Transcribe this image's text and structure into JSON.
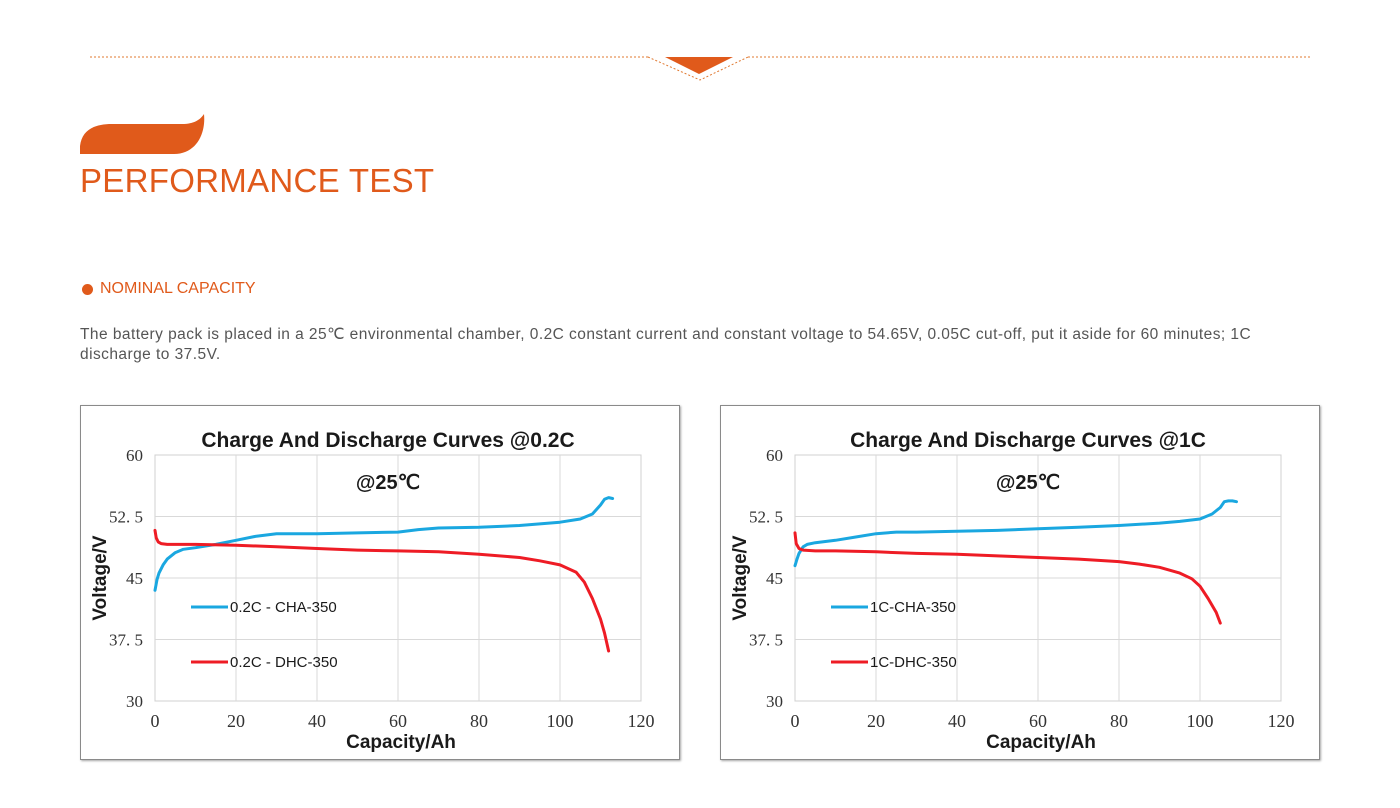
{
  "page": {
    "title": "PERFORMANCE TEST",
    "section_label": "NOMINAL CAPACITY",
    "description": "The battery pack is placed in a 25℃ environmental chamber, 0.2C constant current and constant voltage to 54.65V, 0.05C cut-off, put it aside for 60 minutes; 1C discharge to 37.5V.",
    "accent_color": "#e05a1b",
    "icons": [
      "chevron-down-icon",
      "swoosh-icon",
      "bullet-dot-icon"
    ]
  },
  "chart_data": [
    {
      "type": "line",
      "title": "Charge And Discharge Curves @0.2C",
      "subtitle": "@25℃",
      "xlabel": "Capacity/Ah",
      "ylabel": "Voltage/V",
      "xlim": [
        0,
        120
      ],
      "ylim": [
        30,
        60
      ],
      "xticks": [
        "0",
        "20",
        "40",
        "60",
        "80",
        "100",
        "120"
      ],
      "yticks": [
        "60",
        "52. 5",
        "45",
        "37. 5",
        "30"
      ],
      "grid": true,
      "legend_position": "left",
      "series": [
        {
          "name": "0.2C - CHA-350",
          "color": "#1aa7e0",
          "x": [
            0,
            0.5,
            1,
            2,
            3,
            5,
            7,
            10,
            15,
            20,
            25,
            30,
            40,
            50,
            60,
            65,
            70,
            80,
            90,
            100,
            105,
            108,
            110,
            111,
            112,
            113
          ],
          "y": [
            43.5,
            44.8,
            45.6,
            46.6,
            47.3,
            48.1,
            48.5,
            48.7,
            49.1,
            49.6,
            50.1,
            50.4,
            50.4,
            50.5,
            50.6,
            50.9,
            51.1,
            51.2,
            51.4,
            51.8,
            52.2,
            52.8,
            53.9,
            54.6,
            54.8,
            54.7
          ]
        },
        {
          "name": "0.2C - DHC-350",
          "color": "#ee1c25",
          "x": [
            0,
            0.3,
            0.8,
            1.5,
            3,
            5,
            10,
            20,
            30,
            40,
            50,
            60,
            70,
            80,
            90,
            95,
            100,
            104,
            106,
            108,
            110,
            111,
            112
          ],
          "y": [
            50.8,
            49.9,
            49.4,
            49.2,
            49.1,
            49.1,
            49.1,
            49.0,
            48.8,
            48.6,
            48.4,
            48.3,
            48.2,
            47.9,
            47.5,
            47.1,
            46.6,
            45.7,
            44.5,
            42.5,
            40.0,
            38.3,
            36.1
          ]
        }
      ]
    },
    {
      "type": "line",
      "title": "Charge And Discharge Curves @1C",
      "subtitle": "@25℃",
      "xlabel": "Capacity/Ah",
      "ylabel": "Voltage/V",
      "xlim": [
        0,
        120
      ],
      "ylim": [
        30,
        60
      ],
      "xticks": [
        "0",
        "20",
        "40",
        "60",
        "80",
        "100",
        "120"
      ],
      "yticks": [
        "60",
        "52. 5",
        "45",
        "37. 5",
        "30"
      ],
      "grid": true,
      "legend_position": "left",
      "series": [
        {
          "name": "1C-CHA-350",
          "color": "#1aa7e0",
          "x": [
            0,
            0.5,
            1,
            2,
            3,
            5,
            10,
            15,
            20,
            25,
            30,
            40,
            50,
            60,
            70,
            80,
            90,
            95,
            100,
            103,
            105,
            106,
            107,
            108,
            109
          ],
          "y": [
            46.5,
            47.3,
            48.0,
            48.8,
            49.1,
            49.3,
            49.6,
            50.0,
            50.4,
            50.6,
            50.6,
            50.7,
            50.8,
            51.0,
            51.2,
            51.4,
            51.7,
            51.9,
            52.2,
            52.8,
            53.6,
            54.3,
            54.4,
            54.4,
            54.3
          ]
        },
        {
          "name": "1C-DHC-350",
          "color": "#ee1c25",
          "x": [
            0,
            0.3,
            1,
            2,
            5,
            10,
            20,
            30,
            40,
            50,
            60,
            70,
            80,
            85,
            90,
            95,
            98,
            100,
            102,
            104,
            105
          ],
          "y": [
            50.5,
            49.2,
            48.6,
            48.4,
            48.3,
            48.3,
            48.2,
            48.0,
            47.9,
            47.7,
            47.5,
            47.3,
            47.0,
            46.7,
            46.3,
            45.6,
            44.9,
            44.0,
            42.5,
            40.8,
            39.5
          ]
        }
      ]
    }
  ]
}
